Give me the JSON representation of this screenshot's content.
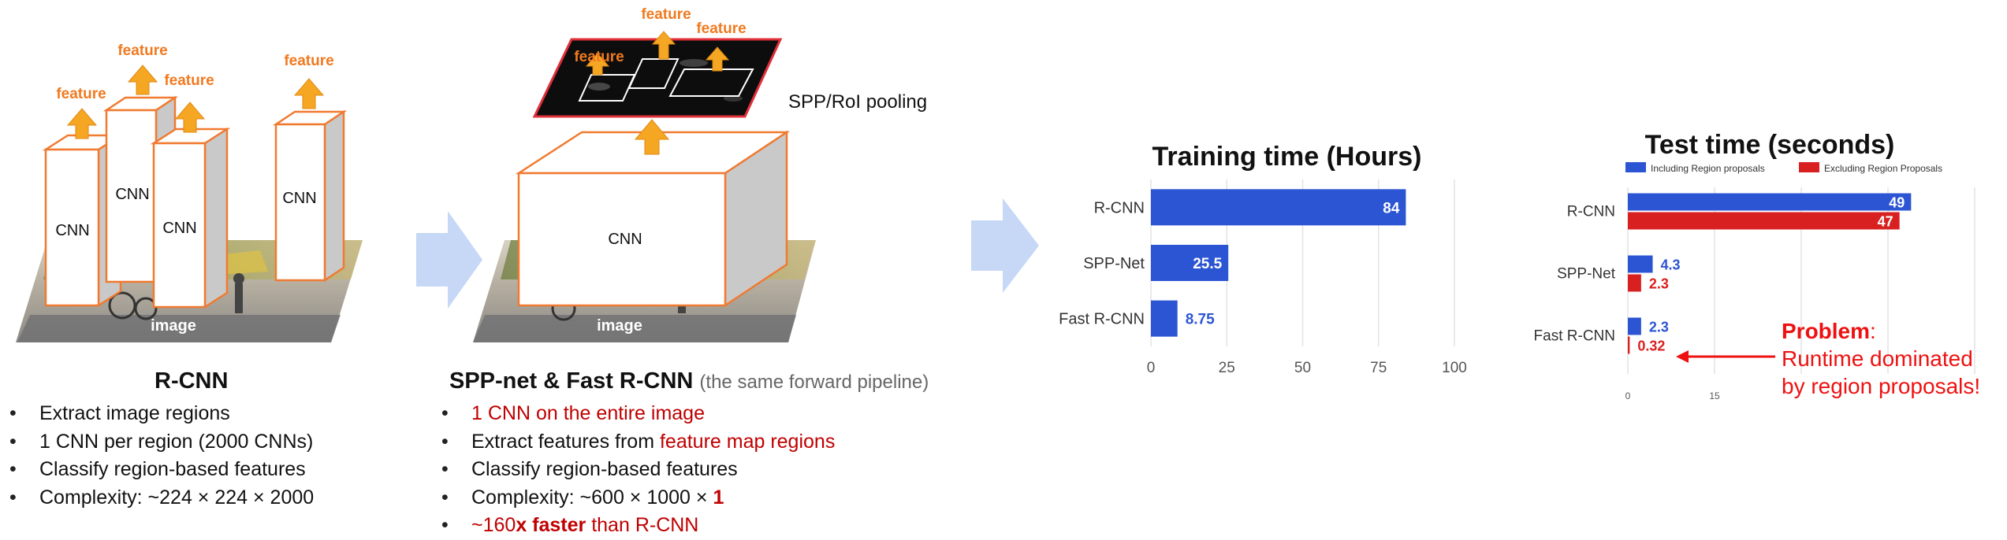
{
  "rcnn_panel": {
    "cnn_labels": [
      "CNN",
      "CNN",
      "CNN",
      "CNN"
    ],
    "feature_labels": [
      "feature",
      "feature",
      "feature",
      "feature"
    ],
    "image_label": "image",
    "title": "R-CNN",
    "bullets": [
      "Extract image regions",
      "1 CNN per region (2000 CNNs)",
      "Classify region-based features",
      "Complexity: ~224 × 224 × 2000"
    ]
  },
  "spp_panel": {
    "cnn_label": "CNN",
    "feature_labels": [
      "feature",
      "feature",
      "feature"
    ],
    "pooling_label": "SPP/RoI pooling",
    "image_label": "image",
    "title": "SPP-net & Fast R-CNN",
    "subtitle": "(the same forward pipeline)",
    "bullets": {
      "b1": "1 CNN on the entire image",
      "b2_prefix": "Extract features from ",
      "b2_red": "feature map regions",
      "b3": "Classify region-based features",
      "b4_prefix": "Complexity: ~600 × 1000 × ",
      "b4_red": "1",
      "b5_prefix": "~160",
      "b5_bold": "x faster",
      "b5_suffix": " than R-CNN"
    }
  },
  "colors": {
    "orange": "#f0a020",
    "orange_edge": "#f07a30",
    "arrow_blue": "#c6d8f5",
    "bar_blue": "#2c55d3",
    "bar_red": "#d92020",
    "text_red": "#c00000"
  },
  "chart_data": [
    {
      "type": "bar",
      "orientation": "horizontal",
      "title": "Training time (Hours)",
      "categories": [
        "R-CNN",
        "SPP-Net",
        "Fast R-CNN"
      ],
      "series": [
        {
          "values": [
            84,
            25.5,
            8.75
          ],
          "labels": [
            "84",
            "25.5",
            "8.75"
          ]
        }
      ],
      "xlim": [
        0,
        100
      ],
      "xticks": [
        0,
        25,
        50,
        75,
        100
      ],
      "grid": true
    },
    {
      "type": "bar",
      "orientation": "horizontal",
      "title": "Test time (seconds)",
      "categories": [
        "R-CNN",
        "SPP-Net",
        "Fast R-CNN"
      ],
      "series": [
        {
          "name": "Including Region proposals",
          "values": [
            49,
            4.3,
            2.3
          ],
          "labels": [
            "49",
            "4.3",
            "2.3"
          ]
        },
        {
          "name": "Excluding Region Proposals",
          "values": [
            47,
            2.3,
            0.32
          ],
          "labels": [
            "47",
            "2.3",
            "0.32"
          ]
        }
      ],
      "xlim": [
        0,
        60
      ],
      "xticks": [
        0,
        15,
        30,
        45,
        60
      ],
      "visible_xtick_labels": [
        "0",
        "15"
      ],
      "legend": "top",
      "grid": true
    }
  ],
  "annotation": {
    "problem_label": "Problem",
    "problem_colon": ":",
    "line2": "Runtime dominated",
    "line3": "by region proposals!"
  }
}
